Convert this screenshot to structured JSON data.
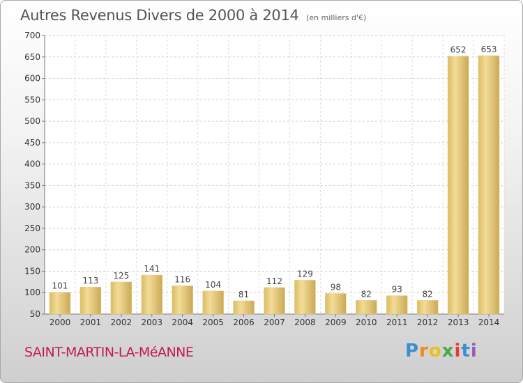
{
  "chart_data": {
    "type": "bar",
    "title": "Autres Revenus Divers de 2000 à 2014",
    "subtitle": "(en milliers d'€)",
    "categories": [
      "2000",
      "2001",
      "2002",
      "2003",
      "2004",
      "2005",
      "2006",
      "2007",
      "2008",
      "2009",
      "2010",
      "2011",
      "2012",
      "2013",
      "2014"
    ],
    "values": [
      101,
      113,
      125,
      141,
      116,
      104,
      81,
      112,
      129,
      98,
      82,
      93,
      82,
      652,
      653
    ],
    "ylim": [
      50,
      700
    ],
    "yticks": [
      50,
      100,
      150,
      200,
      250,
      300,
      350,
      400,
      450,
      500,
      550,
      600,
      650,
      700
    ],
    "grid": true,
    "bar_color": "#e8cf7f"
  },
  "footer": {
    "commune": "SAINT-MARTIN-LA-MéANNE",
    "logo_letters": [
      "P",
      "r",
      "o",
      "x",
      "i",
      "t",
      "i"
    ],
    "logo_colors": [
      "#3a8fd1",
      "#f08a1c",
      "#e6c21d",
      "#4aa84a",
      "#e23b3b",
      "#3a8fd1",
      "#9b59b6"
    ]
  }
}
